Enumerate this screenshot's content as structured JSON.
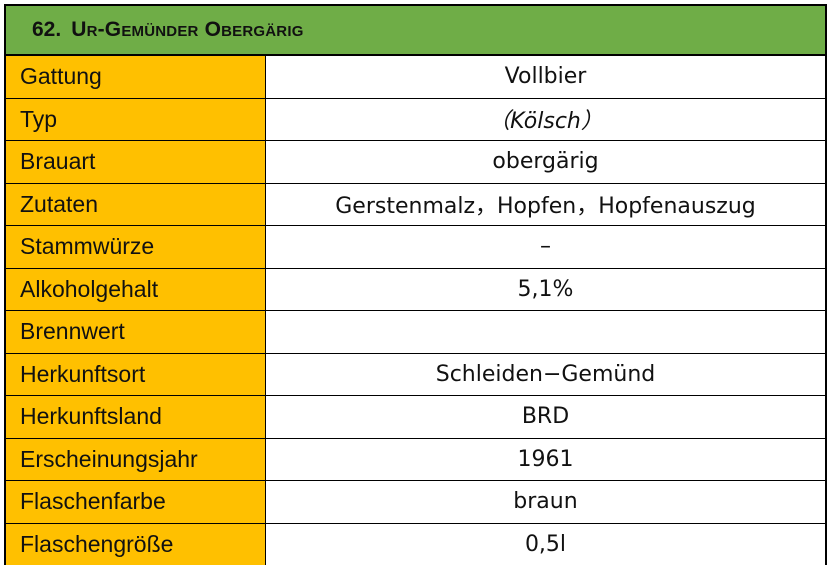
{
  "title": {
    "number": "62.",
    "name": "Ur-Gemünder Obergärig"
  },
  "rows": [
    {
      "label": "Gattung",
      "value": "Vollbier"
    },
    {
      "label": "Typ",
      "value": "（Kölsch）"
    },
    {
      "label": "Brauart",
      "value": "obergärig"
    },
    {
      "label": "Zutaten",
      "value": "Gerstenmalz，Hopfen，Hopfenauszug"
    },
    {
      "label": "Stammwürze",
      "value": "–"
    },
    {
      "label": "Alkoholgehalt",
      "value": "5,1%"
    },
    {
      "label": "Brennwert",
      "value": ""
    },
    {
      "label": "Herkunftsort",
      "value": "Schleiden−Gemünd"
    },
    {
      "label": "Herkunftsland",
      "value": "BRD"
    },
    {
      "label": "Erscheinungsjahr",
      "value": "1961"
    },
    {
      "label": "Flaschenfarbe",
      "value": "braun"
    },
    {
      "label": "Flaschengröße",
      "value": "0,5l"
    }
  ],
  "colors": {
    "header_green": "#6fad47",
    "label_orange": "#ffc000",
    "border": "#000000"
  }
}
